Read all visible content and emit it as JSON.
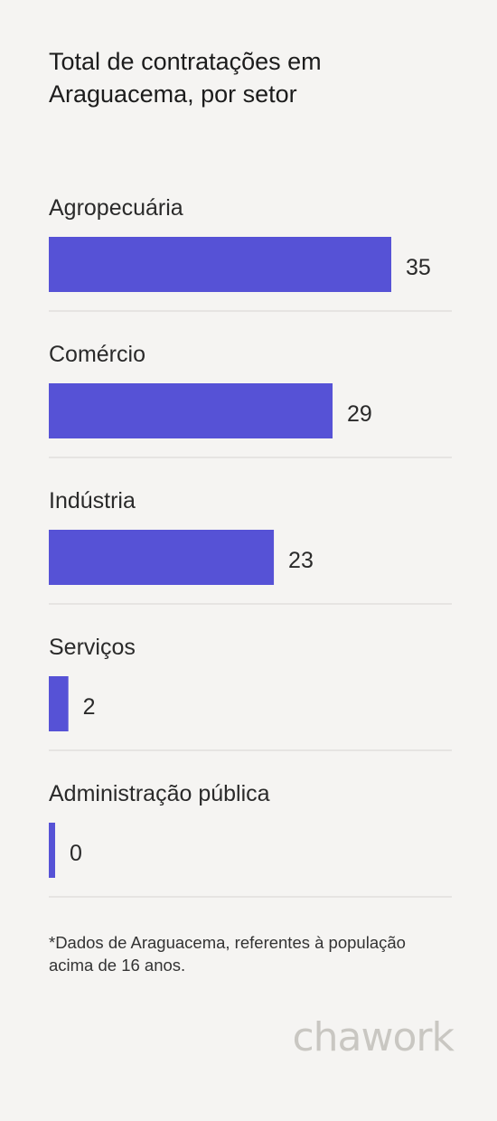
{
  "title": "Total de contratações em Araguacema, por setor",
  "note": "*Dados de Araguacema, referentes à população acima de 16 anos.",
  "brand": "chawork",
  "colors": {
    "bar": "#5652d6",
    "background": "#f5f4f2",
    "divider": "#e1dfdc",
    "brand": "#c9c7c2"
  },
  "chart_data": {
    "type": "bar",
    "orientation": "horizontal",
    "categories": [
      "Agropecuária",
      "Comércio",
      "Indústria",
      "Serviços",
      "Administração pública"
    ],
    "values": [
      35,
      29,
      23,
      2,
      0
    ],
    "xlim": [
      0,
      35
    ],
    "grid": false,
    "legend": "none"
  }
}
